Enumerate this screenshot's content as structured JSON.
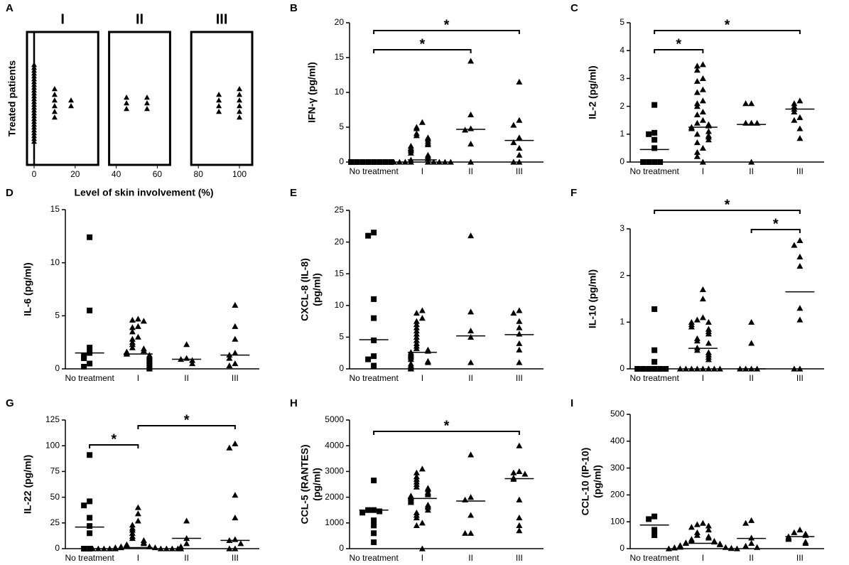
{
  "chart_data": [
    {
      "type": "strip",
      "panel": "A",
      "xlabel": "Level of skin involvement (%)",
      "ylabel": [
        "Treated patients"
      ],
      "xlim": [
        0,
        100
      ],
      "xticks": [
        0,
        20,
        40,
        60,
        80,
        100
      ],
      "groups": [
        {
          "label": "I",
          "range": [
            0,
            25
          ]
        },
        {
          "label": "II",
          "range": [
            40,
            60
          ]
        },
        {
          "label": "III",
          "range": [
            80,
            100
          ]
        }
      ],
      "x": [
        0,
        0,
        0,
        0,
        0,
        0,
        0,
        0,
        0,
        0,
        0,
        0,
        0,
        0,
        0,
        0,
        0,
        0,
        0,
        0,
        0,
        0,
        0,
        0,
        0,
        0,
        0,
        0,
        10,
        10,
        10,
        10,
        10,
        10,
        18,
        18,
        45,
        45,
        45,
        55,
        55,
        55,
        90,
        90,
        90,
        90,
        100,
        100,
        100,
        100,
        100,
        100
      ]
    },
    {
      "type": "dot",
      "panel": "B",
      "ylabel": [
        "IFN-γ (pg/ml)"
      ],
      "categories": [
        "No treatment",
        "I",
        "II",
        "III"
      ],
      "ylim": [
        0,
        20
      ],
      "yticks": [
        0,
        5,
        10,
        15,
        20
      ],
      "values": [
        [
          0,
          0,
          0,
          0,
          0,
          0,
          0,
          0
        ],
        [
          5.7,
          5.0,
          4.8,
          4.1,
          3.8,
          3.5,
          3.3,
          3.0,
          2.7,
          2.5,
          2.3,
          2.0,
          1.8,
          1.6,
          1.3,
          1.0,
          0.8,
          0.5,
          0.3,
          0,
          0,
          0,
          0,
          0,
          0,
          0,
          0,
          0
        ],
        [
          14.5,
          6.8,
          4.8,
          4.6,
          2.6,
          0
        ],
        [
          11.5,
          6.0,
          5.3,
          3.5,
          2.8,
          2.0,
          1.0,
          0,
          0
        ]
      ],
      "medians": [
        0,
        0.3,
        4.7,
        3.1
      ],
      "significance": [
        {
          "groups": [
            0,
            2
          ],
          "label": "*"
        },
        {
          "groups": [
            0,
            3
          ],
          "label": "*"
        }
      ]
    },
    {
      "type": "dot",
      "panel": "C",
      "ylabel": [
        "IL-2 (pg/ml)"
      ],
      "categories": [
        "No treatment",
        "I",
        "II",
        "III"
      ],
      "ylim": [
        0,
        5
      ],
      "yticks": [
        0,
        1,
        2,
        3,
        4,
        5
      ],
      "values": [
        [
          2.05,
          1.05,
          1.0,
          0.8,
          0.5,
          0,
          0,
          0,
          0
        ],
        [
          3.5,
          3.45,
          3.3,
          3.0,
          2.9,
          2.6,
          2.5,
          2.2,
          2.1,
          2.0,
          1.8,
          1.7,
          1.5,
          1.4,
          1.35,
          1.3,
          1.25,
          1.2,
          1.1,
          1.0,
          0.95,
          0.9,
          0.8,
          0.7,
          0.5,
          0.35,
          0.2,
          0
        ],
        [
          2.1,
          2.1,
          1.4,
          1.4,
          1.4,
          0
        ],
        [
          2.2,
          2.1,
          2.0,
          1.9,
          1.8,
          1.6,
          1.5,
          1.2,
          0.85
        ]
      ],
      "medians": [
        0.45,
        1.25,
        1.35,
        1.9
      ],
      "significance": [
        {
          "groups": [
            0,
            1
          ],
          "label": "*"
        },
        {
          "groups": [
            0,
            3
          ],
          "label": "*"
        }
      ]
    },
    {
      "type": "dot",
      "panel": "D",
      "ylabel": [
        "IL-6 (pg/ml)"
      ],
      "categories": [
        "No treatment",
        "I",
        "II",
        "III"
      ],
      "ylim": [
        0,
        15
      ],
      "yticks": [
        0,
        5,
        10,
        15
      ],
      "values": [
        [
          12.4,
          5.5,
          2.0,
          1.5,
          1.2,
          1.0,
          0.5,
          0.2
        ],
        [
          4.7,
          4.6,
          4.5,
          4.0,
          3.9,
          3.5,
          3.0,
          2.8,
          2.5,
          2.3,
          2.0,
          1.9,
          1.7,
          1.6,
          1.5,
          1.4,
          1.3,
          1.2,
          1.1,
          1.0,
          0.9,
          0.8,
          0.7,
          0.6,
          0.5,
          0.4,
          0.3,
          0.2,
          0.1,
          0
        ],
        [
          2.3,
          1.0,
          0.9,
          0.8,
          0.5
        ],
        [
          6.0,
          4.0,
          2.8,
          1.5,
          1.3,
          1.0,
          0.5,
          0.3
        ]
      ],
      "medians": [
        1.5,
        1.4,
        0.9,
        1.3
      ],
      "significance": []
    },
    {
      "type": "dot",
      "panel": "E",
      "ylabel": [
        "CXCL-8 (IL-8)",
        "(pg/ml)"
      ],
      "categories": [
        "No treatment",
        "I",
        "II",
        "III"
      ],
      "ylim": [
        0,
        25
      ],
      "yticks": [
        0,
        5,
        10,
        15,
        20,
        25
      ],
      "values": [
        [
          21.5,
          21,
          11,
          8,
          4.5,
          2,
          1.5,
          0.5
        ],
        [
          9.2,
          8.8,
          8.0,
          7.5,
          7.0,
          6.5,
          6.0,
          5.5,
          5.0,
          4.5,
          4.0,
          3.6,
          3.2,
          3.0,
          2.8,
          2.6,
          2.4,
          2.2,
          2.0,
          1.8,
          1.5,
          1.2,
          1.0,
          0.8,
          0.5,
          0.3,
          0.1,
          0
        ],
        [
          21,
          9,
          6,
          5,
          1
        ],
        [
          9.2,
          8.8,
          7.5,
          6.5,
          5.5,
          4,
          3,
          1
        ]
      ],
      "medians": [
        4.6,
        2.6,
        5.2,
        5.4
      ],
      "significance": []
    },
    {
      "type": "dot",
      "panel": "F",
      "ylabel": [
        "IL-10 (pg/ml)"
      ],
      "categories": [
        "No treatment",
        "I",
        "II",
        "III"
      ],
      "ylim": [
        0,
        3
      ],
      "yticks": [
        0,
        1,
        2,
        3
      ],
      "values": [
        [
          1.28,
          0.4,
          0.15,
          0,
          0,
          0,
          0,
          0,
          0
        ],
        [
          1.7,
          1.5,
          1.1,
          1.05,
          1.0,
          1.0,
          0.95,
          0.9,
          0.85,
          0.8,
          0.75,
          0.65,
          0.6,
          0.55,
          0.45,
          0.4,
          0.35,
          0.3,
          0.25,
          0.2,
          0,
          0,
          0,
          0,
          0,
          0,
          0,
          0
        ],
        [
          1.0,
          0.55,
          0,
          0,
          0,
          0
        ],
        [
          2.75,
          2.65,
          2.4,
          2.2,
          1.3,
          1.05,
          0,
          0
        ]
      ],
      "medians": [
        0,
        0.44,
        0,
        1.65
      ],
      "significance": [
        {
          "groups": [
            2,
            3
          ],
          "label": "*"
        },
        {
          "groups": [
            0,
            3
          ],
          "label": "*"
        }
      ]
    },
    {
      "type": "dot",
      "panel": "G",
      "ylabel": [
        "IL-22 (pg/ml)"
      ],
      "categories": [
        "No treatment",
        "I",
        "II",
        "III"
      ],
      "ylim": [
        0,
        125
      ],
      "yticks": [
        0,
        25,
        50,
        75,
        100,
        125
      ],
      "values": [
        [
          91,
          46,
          42,
          30,
          22,
          15,
          0,
          0
        ],
        [
          40,
          34,
          27,
          23,
          20,
          18,
          15,
          12,
          10,
          8,
          6,
          5,
          4,
          3,
          2,
          2,
          1,
          1,
          1,
          0,
          0,
          0,
          0,
          0,
          0,
          0,
          0,
          0
        ],
        [
          27,
          10,
          5,
          2,
          0
        ],
        [
          102,
          98,
          52,
          30,
          9,
          8,
          5,
          0,
          0
        ]
      ],
      "medians": [
        21,
        1,
        10,
        8
      ],
      "significance": [
        {
          "groups": [
            0,
            1
          ],
          "label": "*"
        },
        {
          "groups": [
            1,
            3
          ],
          "label": "*"
        }
      ]
    },
    {
      "type": "dot",
      "panel": "H",
      "ylabel": [
        "CCL-5 (RANTES)",
        "(pg/ml)"
      ],
      "categories": [
        "No treatment",
        "I",
        "II",
        "III"
      ],
      "ylim": [
        0,
        5000
      ],
      "yticks": [
        0,
        1000,
        2000,
        3000,
        4000,
        5000
      ],
      "values": [
        [
          2650,
          1500,
          1500,
          1450,
          1400,
          1100,
          900,
          600,
          250
        ],
        [
          3100,
          2950,
          2800,
          2700,
          2600,
          2500,
          2400,
          2350,
          2300,
          2200,
          2150,
          2100,
          2050,
          2000,
          1950,
          1900,
          1850,
          1800,
          1700,
          1650,
          1600,
          1500,
          1400,
          1300,
          1200,
          1000,
          900,
          0
        ],
        [
          3650,
          2000,
          1900,
          1300,
          600,
          600
        ],
        [
          4000,
          3000,
          2950,
          2900,
          2750,
          2700,
          1900,
          1200,
          900,
          700
        ]
      ],
      "medians": [
        1500,
        1950,
        1850,
        2720
      ],
      "significance": [
        {
          "groups": [
            0,
            3
          ],
          "label": "*"
        }
      ]
    },
    {
      "type": "dot",
      "panel": "I",
      "ylabel": [
        "CCL-10 (IP-10)",
        "(pg/ml)"
      ],
      "categories": [
        "No treatment",
        "I",
        "II",
        "III"
      ],
      "ylim": [
        0,
        500
      ],
      "yticks": [
        0,
        100,
        200,
        300,
        400,
        500
      ],
      "values": [
        [
          120,
          110,
          70,
          50
        ],
        [
          95,
          90,
          85,
          80,
          70,
          60,
          50,
          45,
          40,
          35,
          30,
          28,
          25,
          22,
          20,
          18,
          15,
          12,
          10,
          8,
          6,
          5,
          4,
          3,
          2,
          1,
          0,
          0
        ],
        [
          105,
          95,
          40,
          20,
          10,
          5
        ],
        [
          70,
          60,
          55,
          50,
          45,
          40,
          35,
          25,
          20
        ]
      ],
      "medians": [
        88,
        20,
        38,
        45
      ],
      "significance": []
    }
  ]
}
